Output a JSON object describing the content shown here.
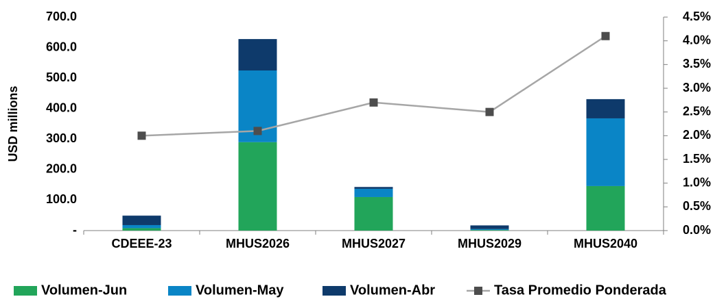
{
  "chart_data": {
    "type": "bar",
    "stacked": true,
    "y_axis_label": "USD millions",
    "categories": [
      "CDEEE-23",
      "MHUS2026",
      "MHUS2027",
      "MHUS2029",
      "MHUS2040"
    ],
    "series": [
      {
        "name": "Volumen-Jun",
        "color": "#22a55a",
        "values": [
          8,
          290,
          110,
          2,
          146
        ]
      },
      {
        "name": "Volumen-May",
        "color": "#0a85c6",
        "values": [
          10,
          235,
          27,
          3,
          222
        ]
      },
      {
        "name": "Volumen-Abr",
        "color": "#0e3a6b",
        "values": [
          31,
          103,
          6,
          12,
          63
        ]
      },
      {
        "name": "Tasa Promedio Ponderada",
        "type": "line",
        "axis": "y2",
        "color": "#a6a6a6",
        "marker_color": "#4d4d4d",
        "values": [
          2.0,
          2.1,
          2.7,
          2.5,
          4.1
        ]
      }
    ],
    "ylim": [
      0,
      700
    ],
    "yticks": [
      {
        "value": 0,
        "label": "-"
      },
      {
        "value": 100,
        "label": "100.0"
      },
      {
        "value": 200,
        "label": "200.0"
      },
      {
        "value": 300,
        "label": "300.0"
      },
      {
        "value": 400,
        "label": "400.0"
      },
      {
        "value": 500,
        "label": "500.0"
      },
      {
        "value": 600,
        "label": "600.0"
      },
      {
        "value": 700,
        "label": "700.0"
      }
    ],
    "y2lim": [
      0,
      4.5
    ],
    "y2ticks": [
      {
        "value": 0,
        "label": "0.0%"
      },
      {
        "value": 0.5,
        "label": "0.5%"
      },
      {
        "value": 1.0,
        "label": "1.0%"
      },
      {
        "value": 1.5,
        "label": "1.5%"
      },
      {
        "value": 2.0,
        "label": "2.0%"
      },
      {
        "value": 2.5,
        "label": "2.5%"
      },
      {
        "value": 3.0,
        "label": "3.0%"
      },
      {
        "value": 3.5,
        "label": "3.5%"
      },
      {
        "value": 4.0,
        "label": "4.0%"
      },
      {
        "value": 4.5,
        "label": "4.5%"
      }
    ],
    "grid": false,
    "legend": "bottom"
  }
}
